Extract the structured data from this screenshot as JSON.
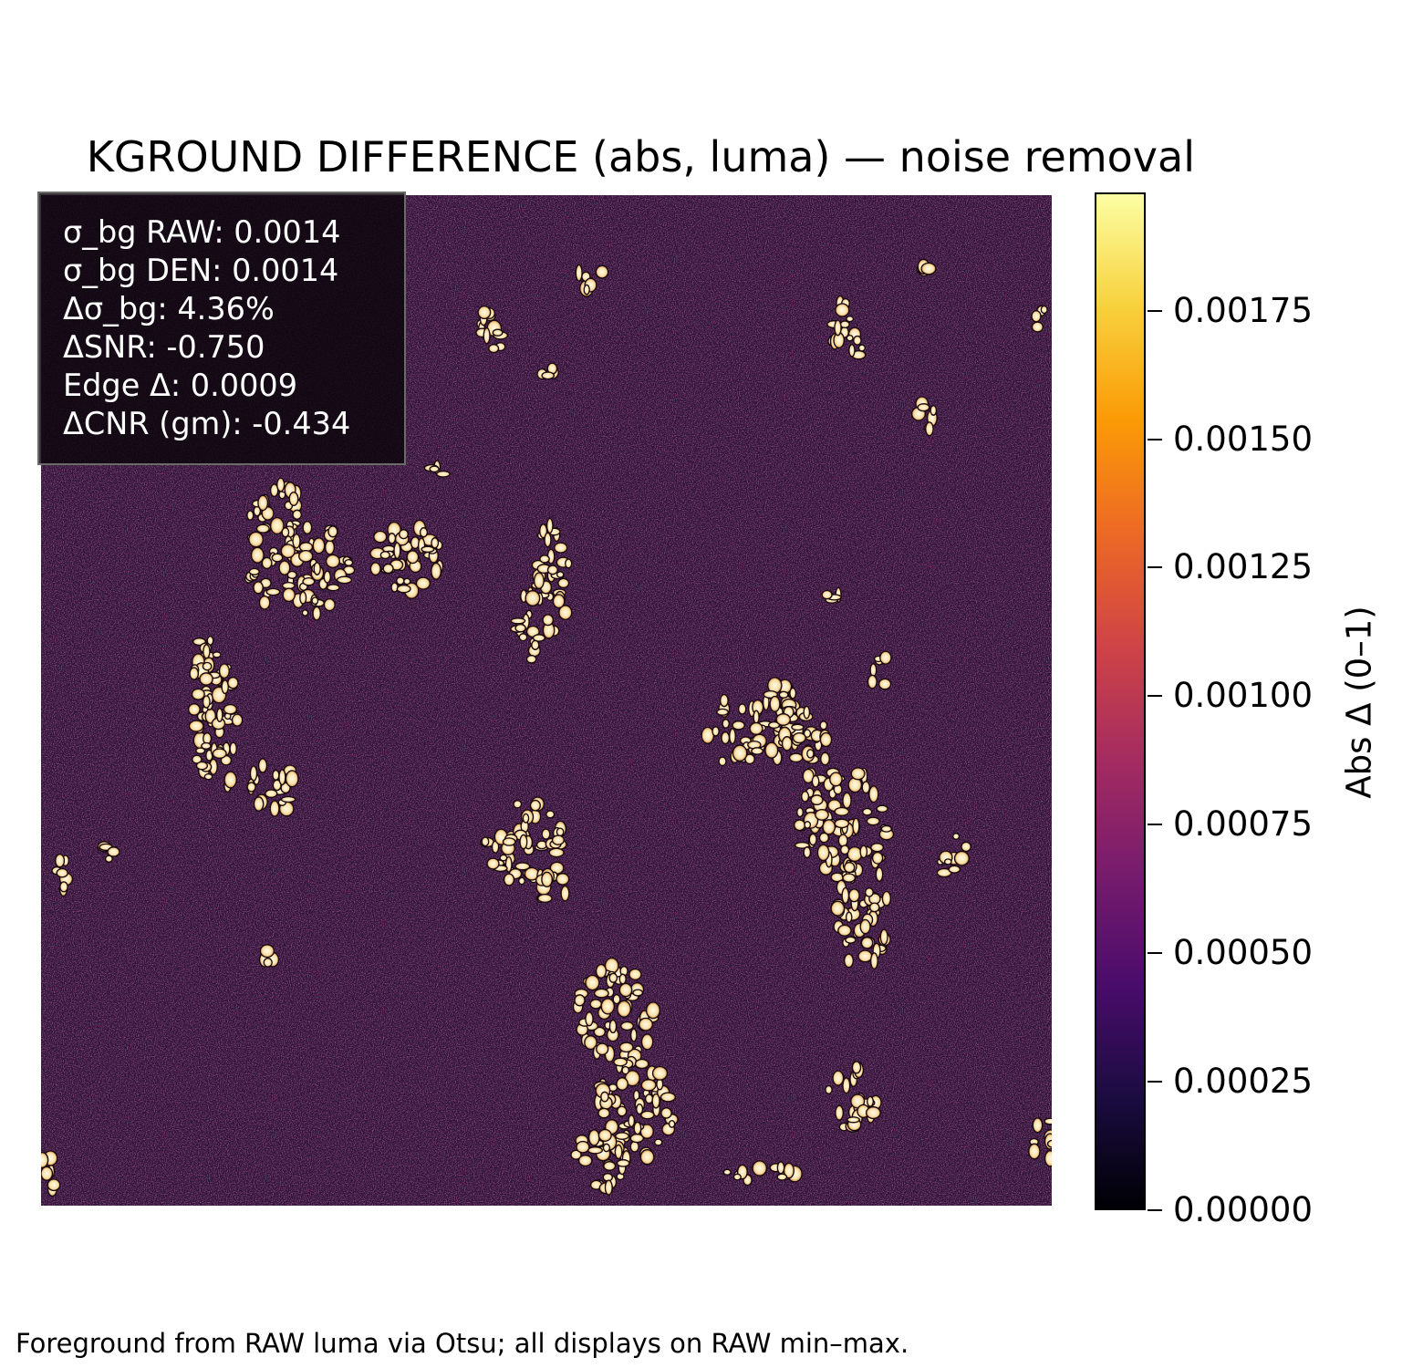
{
  "figure": {
    "title": "KGROUND DIFFERENCE (abs, luma) — noise removal",
    "footnote": "Foreground from RAW luma via Otsu; all displays on RAW min–max."
  },
  "stats": [
    "σ_bg RAW: 0.0014",
    "σ_bg DEN: 0.0014",
    "Δσ_bg: 4.36%",
    "ΔSNR: -0.750",
    "Edge Δ: 0.0009",
    "ΔCNR (gm): -0.434"
  ],
  "colorbar": {
    "label": "Abs Δ (0–1)",
    "colormap": "inferno",
    "vmin": 0.0,
    "vmax": 0.00198,
    "ticks": [
      {
        "value": 0.0,
        "label": "0.00000"
      },
      {
        "value": 0.00025,
        "label": "0.00025"
      },
      {
        "value": 0.0005,
        "label": "0.00050"
      },
      {
        "value": 0.00075,
        "label": "0.00075"
      },
      {
        "value": 0.001,
        "label": "0.00100"
      },
      {
        "value": 0.00125,
        "label": "0.00125"
      },
      {
        "value": 0.0015,
        "label": "0.00150"
      },
      {
        "value": 0.00175,
        "label": "0.00175"
      }
    ],
    "stops": [
      "#000004",
      "#1b0c41",
      "#4a0c6b",
      "#781c6d",
      "#a52c60",
      "#cf4446",
      "#ed6925",
      "#fb9b06",
      "#f7d13d",
      "#fcffa4"
    ]
  },
  "colors": {
    "background_noise": "#2a1237",
    "blob_fill": "#fff6dc",
    "blob_edge": "#f0c060"
  }
}
